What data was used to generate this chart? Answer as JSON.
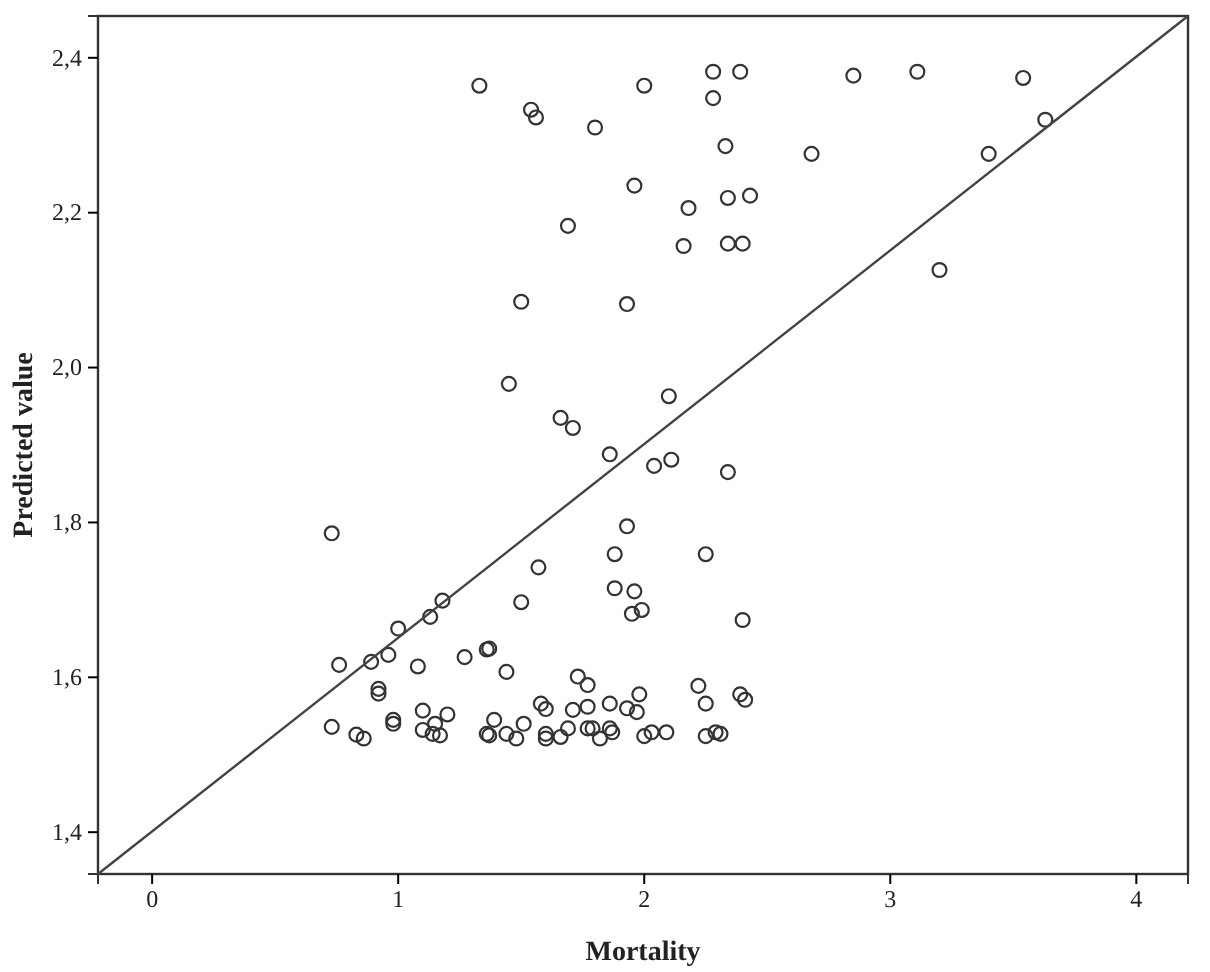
{
  "chart_data": {
    "type": "scatter",
    "xlabel": "Mortality",
    "ylabel": "Predicted value",
    "xlim": [
      -0.22,
      4.21
    ],
    "ylim": [
      1.346,
      2.454
    ],
    "xticks": [
      0,
      1,
      2,
      3,
      4
    ],
    "yticks": [
      {
        "value": 1.4,
        "label": "1,4"
      },
      {
        "value": 1.6,
        "label": "1,6"
      },
      {
        "value": 1.8,
        "label": "1,8"
      },
      {
        "value": 2.0,
        "label": "2,0"
      },
      {
        "value": 2.2,
        "label": "2,2"
      },
      {
        "value": 2.4,
        "label": "2,4"
      }
    ],
    "grid": false,
    "marker": "circle",
    "series": [
      {
        "color": "#333333",
        "x": [
          1.33,
          1.54,
          1.56,
          1.8,
          2.0,
          2.28,
          2.39,
          2.28,
          2.85,
          3.11,
          3.54,
          3.63,
          2.33,
          2.68,
          3.4,
          1.96,
          1.69,
          1.5,
          1.93,
          1.45,
          1.66,
          1.71,
          1.86,
          2.18,
          2.34,
          2.43,
          2.16,
          2.34,
          2.4,
          3.2,
          2.1,
          2.04,
          2.11,
          2.34,
          1.93,
          1.88,
          2.25,
          1.88,
          1.96,
          1.95,
          1.99,
          2.4,
          2.22,
          2.25,
          2.39,
          2.41,
          1.98,
          1.86,
          1.93,
          1.97,
          1.86,
          1.87,
          2.0,
          2.03,
          2.09,
          2.25,
          2.29,
          2.31,
          0.73,
          1.57,
          1.18,
          1.13,
          1.5,
          1.0,
          0.96,
          0.89,
          0.76,
          1.27,
          1.36,
          1.37,
          1.08,
          1.44,
          0.92,
          0.92,
          1.73,
          1.77,
          1.58,
          1.6,
          1.1,
          1.2,
          0.98,
          0.98,
          1.71,
          1.77,
          0.73,
          0.83,
          0.86,
          1.1,
          1.14,
          1.17,
          1.15,
          1.36,
          1.37,
          1.39,
          1.44,
          1.48,
          1.51,
          1.6,
          1.6,
          1.66,
          1.69,
          1.77,
          1.79,
          1.82
        ],
        "values": [
          2.364,
          2.333,
          2.323,
          2.31,
          2.364,
          2.382,
          2.382,
          2.348,
          2.377,
          2.382,
          2.374,
          2.32,
          2.286,
          2.276,
          2.276,
          2.235,
          2.183,
          2.085,
          2.082,
          1.979,
          1.935,
          1.922,
          1.888,
          2.206,
          2.219,
          2.222,
          2.157,
          2.16,
          2.16,
          2.126,
          1.963,
          1.873,
          1.881,
          1.865,
          1.795,
          1.759,
          1.759,
          1.715,
          1.711,
          1.682,
          1.687,
          1.674,
          1.589,
          1.566,
          1.578,
          1.571,
          1.578,
          1.566,
          1.56,
          1.555,
          1.534,
          1.529,
          1.524,
          1.529,
          1.529,
          1.524,
          1.529,
          1.527,
          1.786,
          1.742,
          1.699,
          1.678,
          1.697,
          1.663,
          1.629,
          1.62,
          1.616,
          1.626,
          1.636,
          1.637,
          1.614,
          1.607,
          1.585,
          1.579,
          1.601,
          1.59,
          1.566,
          1.559,
          1.557,
          1.552,
          1.545,
          1.54,
          1.558,
          1.562,
          1.536,
          1.526,
          1.521,
          1.532,
          1.527,
          1.525,
          1.54,
          1.527,
          1.525,
          1.545,
          1.527,
          1.521,
          1.54,
          1.527,
          1.521,
          1.523,
          1.534,
          1.534,
          1.534,
          1.521
        ]
      },
      {
        "type": "line",
        "color": "#444444",
        "marker": "none",
        "x": [
          -0.22,
          4.21
        ],
        "values": [
          1.346,
          2.454
        ]
      }
    ]
  }
}
